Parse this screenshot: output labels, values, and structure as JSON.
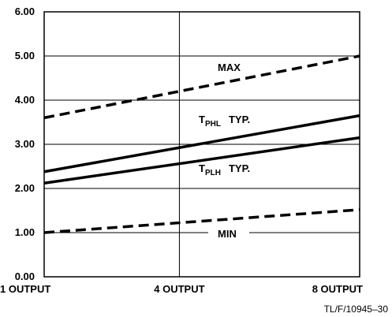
{
  "chart_data": {
    "type": "line",
    "x_categories": [
      "1 OUTPUT",
      "4 OUTPUT",
      "8 OUTPUT"
    ],
    "xlim": [
      1,
      8
    ],
    "ylim": [
      0,
      6
    ],
    "y_ticks": [
      "0.00",
      "1.00",
      "2.00",
      "3.00",
      "4.00",
      "5.00",
      "6.00"
    ],
    "grid": true,
    "series": [
      {
        "name": "MAX",
        "style": "dashed",
        "x": [
          1,
          8
        ],
        "y": [
          3.6,
          5.0
        ]
      },
      {
        "name_main": "T",
        "name_sub": "PHL",
        "name_suffix": "TYP.",
        "style": "solid",
        "x": [
          1,
          8
        ],
        "y": [
          2.38,
          3.65
        ]
      },
      {
        "name_main": "T",
        "name_sub": "PLH",
        "name_suffix": "TYP.",
        "style": "solid",
        "x": [
          1,
          8
        ],
        "y": [
          2.12,
          3.15
        ]
      },
      {
        "name": "MIN",
        "style": "dashed",
        "x": [
          1,
          8
        ],
        "y": [
          1.0,
          1.52
        ]
      }
    ],
    "annotation": "TL/F/10945–30"
  }
}
